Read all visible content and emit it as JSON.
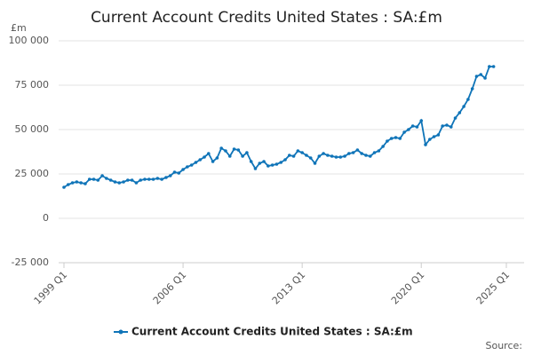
{
  "chart_data": {
    "type": "line",
    "title": "Current Account Credits United States : SA:£m",
    "y_label": "£m",
    "source": "Source:",
    "x": [
      1999,
      1999.25,
      1999.5,
      1999.75,
      2000,
      2000.25,
      2000.5,
      2000.75,
      2001,
      2001.25,
      2001.5,
      2001.75,
      2002,
      2002.25,
      2002.5,
      2002.75,
      2003,
      2003.25,
      2003.5,
      2003.75,
      2004,
      2004.25,
      2004.5,
      2004.75,
      2005,
      2005.25,
      2005.5,
      2005.75,
      2006,
      2006.25,
      2006.5,
      2006.75,
      2007,
      2007.25,
      2007.5,
      2007.75,
      2008,
      2008.25,
      2008.5,
      2008.75,
      2009,
      2009.25,
      2009.5,
      2009.75,
      2010,
      2010.25,
      2010.5,
      2010.75,
      2011,
      2011.25,
      2011.5,
      2011.75,
      2012,
      2012.25,
      2012.5,
      2012.75,
      2013,
      2013.25,
      2013.5,
      2013.75,
      2014,
      2014.25,
      2014.5,
      2014.75,
      2015,
      2015.25,
      2015.5,
      2015.75,
      2016,
      2016.25,
      2016.5,
      2016.75,
      2017,
      2017.25,
      2017.5,
      2017.75,
      2018,
      2018.25,
      2018.5,
      2018.75,
      2019,
      2019.25,
      2019.5,
      2019.75,
      2020,
      2020.25,
      2020.5,
      2020.75,
      2021,
      2021.25,
      2021.5,
      2021.75,
      2022,
      2022.25,
      2022.5,
      2022.75,
      2023,
      2023.25,
      2023.5,
      2023.75,
      2024,
      2024.25
    ],
    "series": [
      {
        "name": "Current Account Credits United States : SA:£m",
        "color": "#0f74b8",
        "values": [
          17500,
          19000,
          20000,
          20500,
          20000,
          19500,
          22000,
          22000,
          21500,
          24000,
          22500,
          21500,
          20500,
          20000,
          20500,
          21500,
          21500,
          20000,
          21500,
          22000,
          22000,
          22000,
          22500,
          22000,
          23000,
          24000,
          26000,
          25500,
          27500,
          29000,
          30000,
          31500,
          33000,
          34500,
          36500,
          32000,
          34000,
          39500,
          38000,
          35000,
          39000,
          38500,
          35000,
          37000,
          32000,
          28000,
          31000,
          32000,
          29500,
          30000,
          30500,
          31500,
          33000,
          35500,
          35000,
          38000,
          37000,
          35500,
          34000,
          31000,
          35000,
          36500,
          35500,
          35000,
          34500,
          34500,
          35000,
          36500,
          37000,
          38500,
          36500,
          35500,
          35000,
          37000,
          38000,
          40500,
          43500,
          45000,
          45500,
          45000,
          48500,
          50000,
          52000,
          51500,
          55000,
          41500,
          44500,
          46000,
          47000,
          52000,
          52500,
          51500,
          56500,
          59500,
          63000,
          67000,
          73000,
          80000,
          81000,
          79000,
          85500,
          85500
        ]
      }
    ],
    "xlim": [
      1999,
      2025
    ],
    "xticks": [
      {
        "value": 1999,
        "label": "1999 Q1"
      },
      {
        "value": 2006,
        "label": "2006 Q1"
      },
      {
        "value": 2013,
        "label": "2013 Q1"
      },
      {
        "value": 2020,
        "label": "2020 Q1"
      },
      {
        "value": 2025,
        "label": "2025 Q1"
      }
    ],
    "ylim": [
      -25000,
      100000
    ],
    "yticks": [
      {
        "value": -25000,
        "label": "-25 000"
      },
      0,
      {
        "value": 25000,
        "label": "25 000"
      },
      {
        "value": 50000,
        "label": "50 000"
      },
      {
        "value": 75000,
        "label": "75 000"
      },
      {
        "value": 100000,
        "label": "100 000"
      }
    ],
    "grid": true
  }
}
